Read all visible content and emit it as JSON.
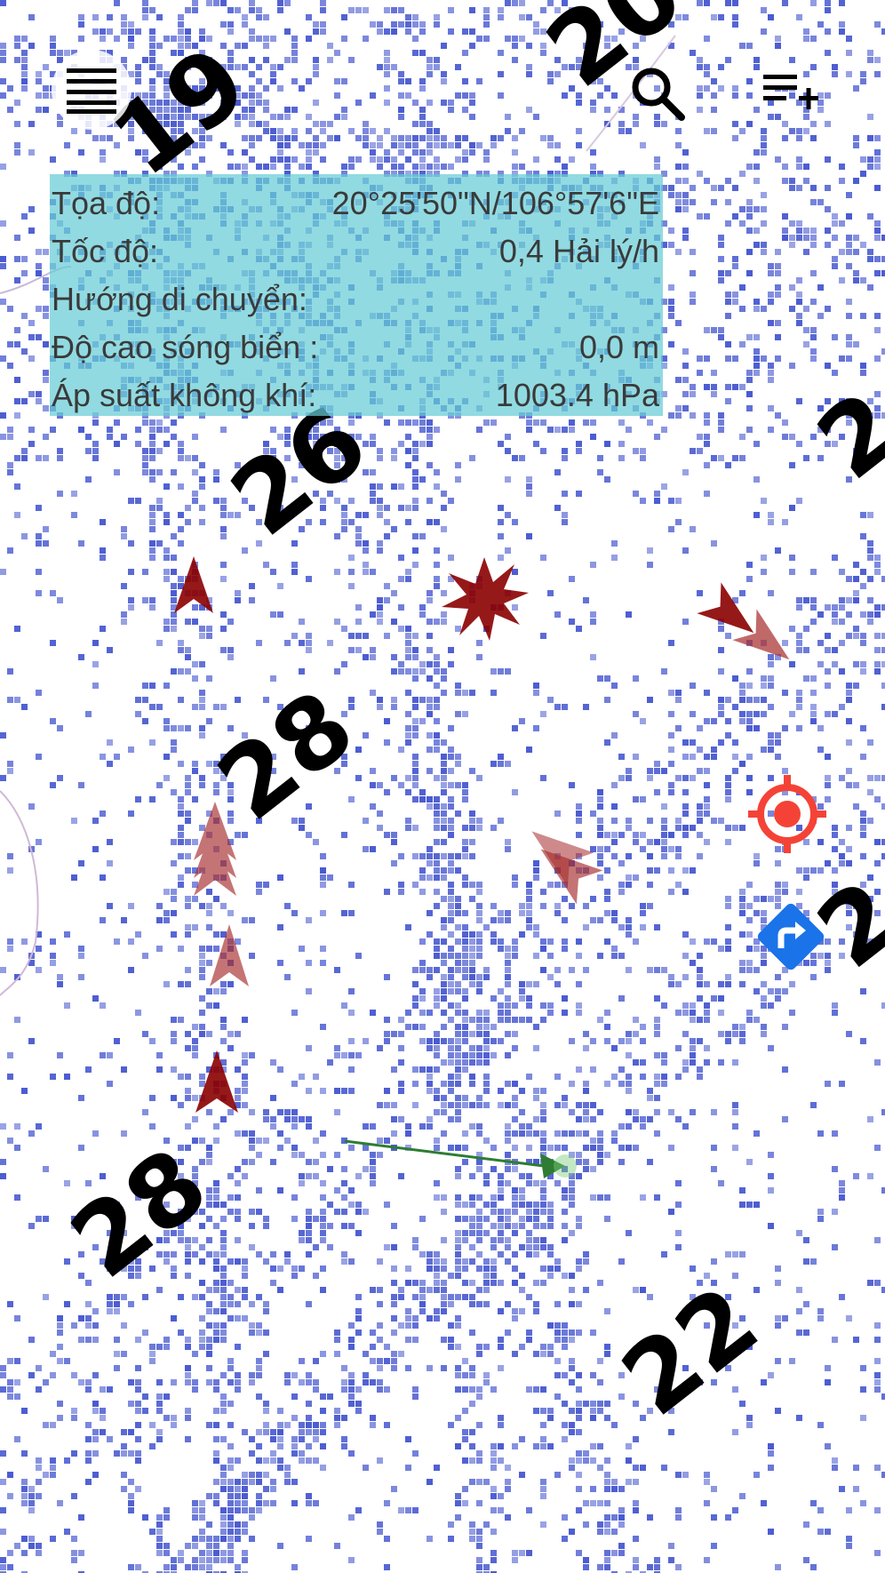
{
  "toolbar": {
    "menu_icon": "menu-icon",
    "search_icon": "search-icon",
    "add_list_icon": "playlist-add-icon"
  },
  "info_panel": {
    "rows": [
      {
        "label": "Tọa độ:",
        "value": "20°25'50\"N/106°57'6\"E"
      },
      {
        "label": "Tốc độ:",
        "value": "0,4 Hải lý/h"
      },
      {
        "label": "Hướng di chuyển:",
        "value": ""
      },
      {
        "label": "Độ cao sóng biển :",
        "value": "0,0 m"
      },
      {
        "label": "Áp suất không khí:",
        "value": "1003.4 hPa"
      }
    ],
    "background_color": "#66CCD6"
  },
  "map": {
    "depth_labels": [
      "19",
      "20",
      "26",
      "28",
      "28",
      "22",
      "2",
      "2"
    ],
    "dot_color": "#4A5BD0",
    "marker_color": "#8B0000",
    "track_color": "#2E7D32"
  },
  "controls": {
    "locate_icon": "my-location-icon",
    "locate_color": "#F44336",
    "route_icon": "directions-icon",
    "route_color": "#1A73E8"
  }
}
